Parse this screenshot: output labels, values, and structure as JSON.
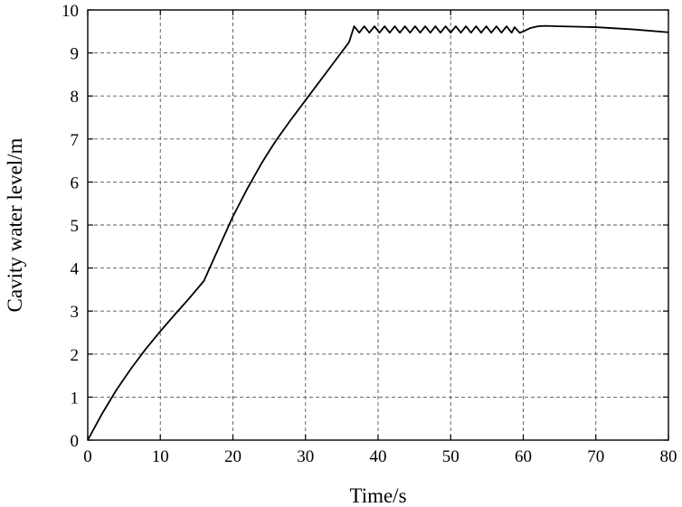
{
  "chart_data": {
    "type": "line",
    "title": "",
    "xlabel": "Time/s",
    "ylabel": "Cavity water level/m",
    "xlim": [
      0,
      80
    ],
    "ylim": [
      0,
      10
    ],
    "xticks": [
      0,
      10,
      20,
      30,
      40,
      50,
      60,
      70,
      80
    ],
    "yticks": [
      0,
      1,
      2,
      3,
      4,
      5,
      6,
      7,
      8,
      9,
      10
    ],
    "grid": true,
    "legend": "none",
    "series": [
      {
        "color": "#000000",
        "x": [
          0,
          2,
          4,
          6,
          8,
          10,
          12,
          14,
          16,
          18,
          20,
          22,
          24,
          25,
          26,
          28,
          30,
          32,
          34,
          36,
          36.7,
          37.4,
          38.1,
          38.8,
          39.5,
          40.2,
          40.9,
          41.6,
          42.3,
          43.0,
          43.7,
          44.4,
          45.1,
          45.8,
          46.5,
          47.2,
          47.9,
          48.6,
          49.3,
          50.0,
          50.7,
          51.4,
          52.1,
          52.8,
          53.5,
          54.2,
          54.9,
          55.6,
          56.3,
          57.0,
          57.7,
          58.4,
          58.8,
          59.5,
          60,
          61,
          62,
          63,
          65,
          70,
          75,
          80
        ],
        "y": [
          0,
          0.62,
          1.18,
          1.67,
          2.12,
          2.53,
          2.92,
          3.3,
          3.7,
          4.45,
          5.2,
          5.85,
          6.45,
          6.72,
          6.98,
          7.45,
          7.9,
          8.35,
          8.8,
          9.25,
          9.62,
          9.47,
          9.62,
          9.47,
          9.62,
          9.47,
          9.62,
          9.47,
          9.62,
          9.47,
          9.62,
          9.47,
          9.62,
          9.47,
          9.62,
          9.47,
          9.62,
          9.47,
          9.62,
          9.47,
          9.62,
          9.47,
          9.62,
          9.47,
          9.62,
          9.47,
          9.62,
          9.47,
          9.62,
          9.47,
          9.62,
          9.47,
          9.6,
          9.47,
          9.5,
          9.58,
          9.62,
          9.63,
          9.62,
          9.6,
          9.55,
          9.48
        ]
      }
    ]
  }
}
